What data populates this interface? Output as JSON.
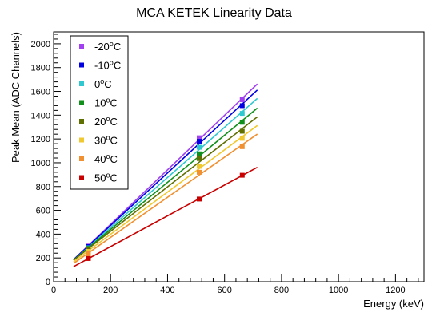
{
  "title": "MCA KETEK Linearity Data",
  "chart_data": {
    "type": "scatter",
    "title": "MCA KETEK Linearity Data",
    "xlabel": "Energy (keV)",
    "ylabel": "Peak Mean (ADC Channels)",
    "xlim": [
      0,
      1300
    ],
    "ylim": [
      0,
      2100
    ],
    "xticks": [
      0,
      200,
      400,
      600,
      800,
      1000,
      1200
    ],
    "yticks": [
      0,
      200,
      400,
      600,
      800,
      1000,
      1200,
      1400,
      1600,
      1800,
      2000
    ],
    "x": [
      122,
      511,
      662
    ],
    "fit_range": [
      70,
      715
    ],
    "grid": false,
    "legend_position": "top-left",
    "series": [
      {
        "name": "-20°C",
        "temp": "-20",
        "color": "#a040f0",
        "values": [
          300,
          1210,
          1530
        ]
      },
      {
        "name": "-10°C",
        "temp": "-10",
        "color": "#0000e0",
        "values": [
          295,
          1180,
          1480
        ]
      },
      {
        "name": "0°C",
        "temp": "0",
        "color": "#30c8d0",
        "values": [
          285,
          1130,
          1415
        ]
      },
      {
        "name": "10°C",
        "temp": "10",
        "color": "#10901a",
        "values": [
          280,
          1075,
          1340
        ]
      },
      {
        "name": "20°C",
        "temp": "20",
        "color": "#607000",
        "values": [
          270,
          1035,
          1265
        ]
      },
      {
        "name": "30°C",
        "temp": "30",
        "color": "#f0c830",
        "values": [
          255,
          970,
          1205
        ]
      },
      {
        "name": "40°C",
        "temp": "40",
        "color": "#f09030",
        "values": [
          235,
          920,
          1135
        ]
      },
      {
        "name": "50°C",
        "temp": "50",
        "color": "#c80000",
        "values": [
          195,
          695,
          895
        ]
      }
    ]
  }
}
